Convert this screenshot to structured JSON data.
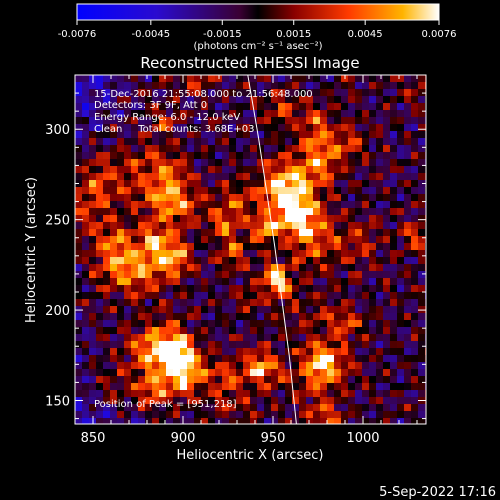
{
  "colorbar": {
    "tick_labels": [
      "-0.0076",
      "-0.0045",
      "-0.0015",
      "0.0015",
      "0.0045",
      "0.0076"
    ],
    "unit_label": "(photons cm⁻² s⁻¹ asec⁻²)",
    "range": [
      -0.0076,
      0.0076
    ]
  },
  "footer": {
    "date_stamp": "5-Sep-2022 17:16"
  },
  "chart_data": {
    "type": "heatmap",
    "title": "Reconstructed RHESSI Image",
    "xlabel": "Heliocentric X (arcsec)",
    "ylabel": "Heliocentric Y (arcsec)",
    "xlim": [
      840,
      1035
    ],
    "ylim": [
      137,
      330
    ],
    "x_ticks": [
      "850",
      "900",
      "950",
      "1000"
    ],
    "y_ticks": [
      "150",
      "200",
      "250",
      "300"
    ],
    "annotations": [
      "15-Dec-2016 21:55:08.000 to 21:56:48.000",
      "Detectors: 3F 9F, Att 0",
      "Energy Range: 6.0 - 12.0 keV",
      "Clean     Total counts: 3.68E+03"
    ],
    "peak_label": "Position of Peak = [951,218]",
    "peak": [
      951,
      218
    ],
    "limb_curve": [
      [
        936,
        330
      ],
      [
        942,
        295
      ],
      [
        947,
        262
      ],
      [
        951,
        235
      ],
      [
        955,
        205
      ],
      [
        959,
        175
      ],
      [
        963,
        137
      ]
    ]
  }
}
